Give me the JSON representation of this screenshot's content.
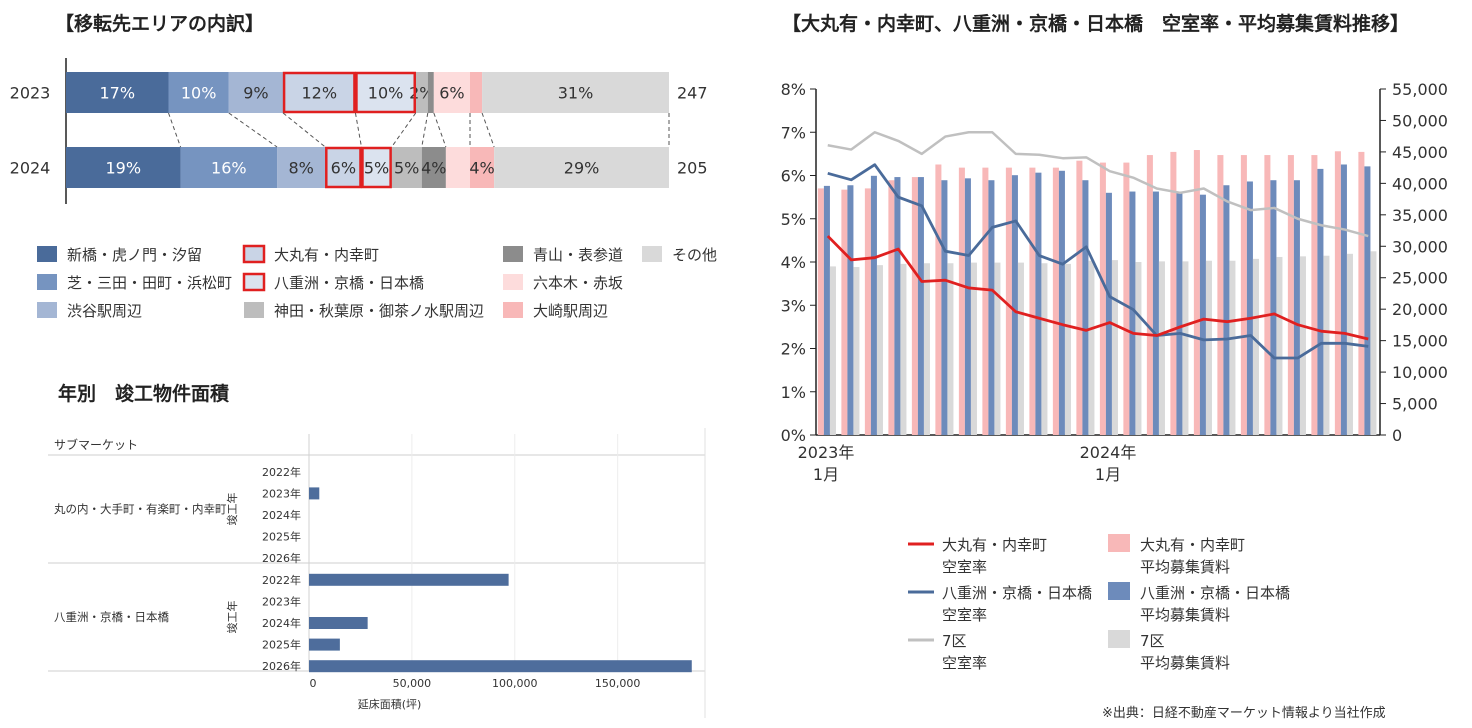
{
  "chart_data": [
    {
      "type": "bar",
      "subtype": "stacked-100-percent-horizontal",
      "title": "【移転先エリアの内訳】",
      "categories": [
        "新橋・虎ノ門・汐留",
        "芝・三田・田町・浜松町",
        "渋谷駅周辺",
        "大丸有・内幸町",
        "八重洲・京橋・日本橋",
        "神田・秋葉原・御茶ノ水駅周辺",
        "青山・表参道",
        "六本木・赤坂",
        "大崎駅周辺",
        "その他"
      ],
      "colors": [
        "#4a6b9a",
        "#7694c0",
        "#a4b6d4",
        "#c9d4e6",
        "#dbe3ef",
        "#bdbdbd",
        "#8c8c8c",
        "#fddcdc",
        "#f8b8b8",
        "#d9d9d9"
      ],
      "highlighted": [
        "大丸有・内幸町",
        "八重洲・京橋・日本橋"
      ],
      "highlight_color": "#e02020",
      "rows": [
        {
          "year": "2023",
          "total": "247",
          "values": [
            17,
            10,
            9,
            12,
            10,
            2,
            1,
            6,
            2,
            31
          ],
          "labels": [
            "17%",
            "10%",
            "9%",
            "12%",
            "10%",
            "2%",
            "",
            "6%",
            "",
            "31%"
          ]
        },
        {
          "year": "2024",
          "total": "205",
          "values": [
            19,
            16,
            8,
            6,
            5,
            5,
            4,
            4,
            4,
            29
          ],
          "labels": [
            "19%",
            "16%",
            "8%",
            "6%",
            "5%",
            "5%",
            "4%",
            "",
            "4%",
            "29%"
          ]
        }
      ]
    },
    {
      "type": "bar",
      "subtype": "grouped-horizontal",
      "title": "年別　竣工物件面積",
      "group_header": "サブマーケット",
      "group_axis_label": "竣工年",
      "xlabel": "延床面積(坪)",
      "xlim": [
        0,
        190000
      ],
      "xticks": [
        0,
        50000,
        100000,
        150000
      ],
      "xtick_labels": [
        "0",
        "50,000",
        "100,000",
        "150,000"
      ],
      "bar_color": "#4e6d9c",
      "groups": [
        {
          "name": "丸の内・大手町・有楽町・内幸町",
          "categories": [
            "2022年",
            "2023年",
            "2024年",
            "2025年",
            "2026年"
          ],
          "values": [
            0,
            5000,
            0,
            0,
            0
          ]
        },
        {
          "name": "八重洲・京橋・日本橋",
          "categories": [
            "2022年",
            "2023年",
            "2024年",
            "2025年",
            "2026年"
          ],
          "values": [
            97000,
            0,
            28500,
            15000,
            186000
          ]
        }
      ]
    },
    {
      "type": "bar+line",
      "title": "【大丸有・内幸町、八重洲・京橋・日本橋　空室率・平均募集賃料推移】",
      "x_tick_labels": [
        {
          "index": 0,
          "lines": [
            "2023年",
            "1月"
          ]
        },
        {
          "index": 12,
          "lines": [
            "2024年",
            "1月"
          ]
        }
      ],
      "x_count": 24,
      "y_left": {
        "min": 0,
        "max": 8,
        "ticks": [
          "0%",
          "1%",
          "2%",
          "3%",
          "4%",
          "5%",
          "6%",
          "7%",
          "8%"
        ]
      },
      "y_right": {
        "min": 0,
        "max": 55000,
        "step": 5000,
        "ticks": [
          "0",
          "5,000",
          "10,000",
          "15,000",
          "20,000",
          "25,000",
          "30,000",
          "35,000",
          "40,000",
          "45,000",
          "50,000",
          "55,000"
        ]
      },
      "bar_series": [
        {
          "name": "大丸有・内幸町 平均募集賃料",
          "legend": [
            "大丸有・内幸町",
            "平均募集賃料"
          ],
          "color": "#f8b8b8",
          "values": [
            39200,
            39000,
            39200,
            40500,
            41000,
            43000,
            42500,
            42500,
            42500,
            42500,
            42500,
            43600,
            43300,
            43300,
            44500,
            45000,
            45300,
            44500,
            44500,
            44500,
            44500,
            44500,
            45100,
            45000
          ]
        },
        {
          "name": "八重洲・京橋・日本橋 平均募集賃料",
          "legend": [
            "八重洲・京橋・日本橋",
            "平均募集賃料"
          ],
          "color": "#6d8bbb",
          "values": [
            39600,
            39700,
            41200,
            41000,
            41000,
            40500,
            40800,
            40500,
            41300,
            41700,
            42000,
            40500,
            38500,
            38700,
            38700,
            38700,
            38200,
            39700,
            40300,
            40500,
            40500,
            42300,
            43000,
            42700
          ]
        },
        {
          "name": "7区 平均募集賃料",
          "legend": [
            "7区",
            "平均募集賃料"
          ],
          "color": "#d9d9d9",
          "values": [
            26800,
            26700,
            27000,
            27200,
            27300,
            27300,
            27400,
            27400,
            27400,
            27300,
            27200,
            27700,
            27800,
            27500,
            27600,
            27600,
            27700,
            27700,
            28000,
            28300,
            28400,
            28500,
            28800,
            29200
          ]
        }
      ],
      "line_series": [
        {
          "name": "大丸有・内幸町 空室率",
          "legend": [
            "大丸有・内幸町",
            "空室率"
          ],
          "color": "#e02020",
          "values": [
            4.6,
            4.05,
            4.1,
            4.3,
            3.55,
            3.58,
            3.4,
            3.35,
            2.85,
            2.7,
            2.55,
            2.42,
            2.6,
            2.35,
            2.3,
            2.5,
            2.68,
            2.62,
            2.7,
            2.8,
            2.55,
            2.4,
            2.35,
            2.22
          ]
        },
        {
          "name": "八重洲・京橋・日本橋 空室率",
          "legend": [
            "八重洲・京橋・日本橋",
            "空室率"
          ],
          "color": "#4a6b9a",
          "values": [
            6.05,
            5.9,
            6.25,
            5.5,
            5.3,
            4.25,
            4.15,
            4.8,
            4.95,
            4.15,
            3.95,
            4.35,
            3.2,
            2.9,
            2.3,
            2.35,
            2.2,
            2.22,
            2.3,
            1.78,
            1.78,
            2.12,
            2.12,
            2.05
          ]
        },
        {
          "name": "7区 空室率",
          "legend": [
            "7区",
            "空室率"
          ],
          "color": "#c0c0c0",
          "values": [
            6.7,
            6.6,
            7.0,
            6.8,
            6.5,
            6.9,
            7.0,
            7.0,
            6.5,
            6.48,
            6.4,
            6.42,
            6.1,
            5.95,
            5.7,
            5.6,
            5.7,
            5.4,
            5.2,
            5.25,
            5.0,
            4.85,
            4.75,
            4.6
          ]
        }
      ]
    }
  ],
  "footnote": "※出典：日経不動産マーケット情報より当社作成"
}
